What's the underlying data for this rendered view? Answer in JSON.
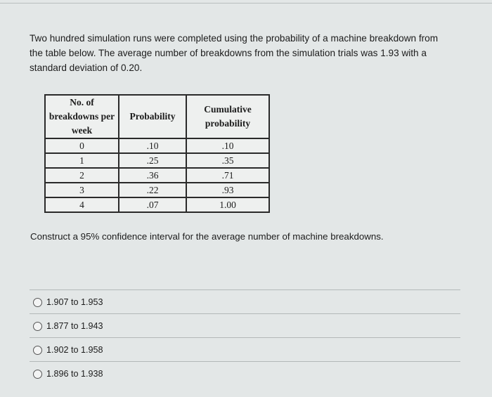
{
  "intro": "Two hundred simulation runs were completed using the probability of a machine breakdown from the table below.  The average number of breakdowns from the simulation trials was 1.93 with a standard deviation of 0.20.",
  "table": {
    "headers": [
      "No. of breakdowns per week",
      "Probability",
      "Cumulative probability"
    ],
    "rows": [
      [
        "0",
        ".10",
        ".10"
      ],
      [
        "1",
        ".25",
        ".35"
      ],
      [
        "2",
        ".36",
        ".71"
      ],
      [
        "3",
        ".22",
        ".93"
      ],
      [
        "4",
        ".07",
        "1.00"
      ]
    ]
  },
  "question": "Construct a 95% confidence interval for the average number of machine breakdowns.",
  "options": [
    {
      "label": "1.907 to 1.953",
      "selected": false
    },
    {
      "label": "1.877 to 1.943",
      "selected": false
    },
    {
      "label": "1.902 to 1.958",
      "selected": false
    },
    {
      "label": "1.896 to 1.938",
      "selected": false
    }
  ]
}
